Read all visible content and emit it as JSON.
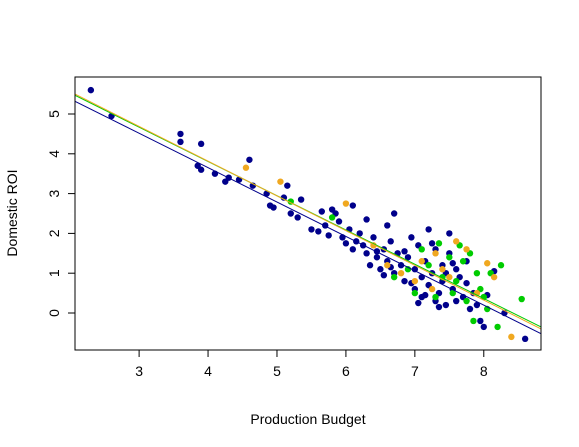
{
  "chart_data": {
    "type": "scatter",
    "title": "",
    "xlabel": "Production Budget",
    "ylabel": "Domestic ROI",
    "xlim": [
      2.07,
      8.83
    ],
    "ylim": [
      -0.93,
      5.93
    ],
    "xticks": [
      "3",
      "4",
      "5",
      "6",
      "7",
      "8"
    ],
    "yticks": [
      "0",
      "1",
      "2",
      "3",
      "4",
      "5"
    ],
    "grid": false,
    "legend": "none",
    "series": [
      {
        "color": "#00008b",
        "points": [
          [
            2.3,
            5.6
          ],
          [
            2.6,
            4.95
          ],
          [
            3.6,
            4.5
          ],
          [
            3.6,
            4.3
          ],
          [
            3.9,
            4.25
          ],
          [
            3.85,
            3.7
          ],
          [
            3.9,
            3.6
          ],
          [
            4.1,
            3.5
          ],
          [
            4.25,
            3.3
          ],
          [
            4.3,
            3.4
          ],
          [
            4.45,
            3.35
          ],
          [
            4.6,
            3.85
          ],
          [
            4.65,
            3.2
          ],
          [
            4.85,
            3.0
          ],
          [
            4.9,
            2.7
          ],
          [
            4.95,
            2.65
          ],
          [
            5.1,
            2.9
          ],
          [
            5.15,
            3.2
          ],
          [
            5.2,
            2.5
          ],
          [
            5.3,
            2.4
          ],
          [
            5.35,
            2.85
          ],
          [
            5.5,
            2.1
          ],
          [
            5.6,
            2.05
          ],
          [
            5.65,
            2.55
          ],
          [
            5.7,
            2.2
          ],
          [
            5.75,
            1.95
          ],
          [
            5.8,
            2.6
          ],
          [
            5.85,
            2.5
          ],
          [
            5.9,
            2.3
          ],
          [
            5.95,
            1.9
          ],
          [
            6.0,
            1.75
          ],
          [
            6.05,
            2.1
          ],
          [
            6.1,
            2.7
          ],
          [
            6.1,
            1.6
          ],
          [
            6.15,
            1.8
          ],
          [
            6.2,
            2.0
          ],
          [
            6.25,
            1.7
          ],
          [
            6.3,
            2.35
          ],
          [
            6.3,
            1.5
          ],
          [
            6.35,
            1.2
          ],
          [
            6.4,
            1.9
          ],
          [
            6.45,
            1.4
          ],
          [
            6.5,
            1.1
          ],
          [
            6.55,
            1.6
          ],
          [
            6.6,
            2.2
          ],
          [
            6.6,
            1.3
          ],
          [
            6.65,
            1.8
          ],
          [
            6.7,
            1.0
          ],
          [
            6.7,
            2.5
          ],
          [
            6.75,
            1.5
          ],
          [
            6.8,
            1.2
          ],
          [
            6.85,
            0.8
          ],
          [
            6.9,
            1.4
          ],
          [
            6.95,
            1.9
          ],
          [
            7.0,
            1.1
          ],
          [
            7.0,
            0.6
          ],
          [
            7.05,
            1.7
          ],
          [
            7.1,
            0.9
          ],
          [
            7.1,
            0.4
          ],
          [
            7.15,
            1.3
          ],
          [
            7.2,
            2.1
          ],
          [
            7.2,
            0.7
          ],
          [
            7.25,
            1.0
          ],
          [
            7.3,
            0.3
          ],
          [
            7.3,
            1.6
          ],
          [
            7.35,
            0.5
          ],
          [
            7.4,
            1.2
          ],
          [
            7.4,
            0.8
          ],
          [
            7.45,
            0.2
          ],
          [
            7.5,
            1.5
          ],
          [
            7.5,
            2.0
          ],
          [
            7.55,
            0.6
          ],
          [
            7.6,
            1.1
          ],
          [
            7.6,
            0.3
          ],
          [
            7.65,
            0.9
          ],
          [
            7.7,
            0.4
          ],
          [
            7.75,
            1.3
          ],
          [
            7.8,
            0.1
          ],
          [
            7.85,
            0.5
          ],
          [
            7.9,
            0.2
          ],
          [
            7.95,
            -0.2
          ],
          [
            8.0,
            -0.35
          ],
          [
            8.05,
            0.45
          ],
          [
            8.15,
            1.05
          ],
          [
            8.3,
            0.0
          ],
          [
            8.6,
            -0.65
          ],
          [
            6.95,
            0.75
          ],
          [
            7.15,
            0.45
          ],
          [
            7.25,
            1.75
          ],
          [
            6.85,
            1.55
          ],
          [
            7.45,
            1.0
          ],
          [
            7.05,
            0.25
          ],
          [
            6.55,
            0.95
          ],
          [
            7.35,
            0.15
          ],
          [
            7.75,
            0.75
          ],
          [
            6.45,
            1.55
          ],
          [
            6.65,
            1.15
          ],
          [
            7.55,
            1.25
          ]
        ]
      },
      {
        "color": "#00cc00",
        "points": [
          [
            5.2,
            2.8
          ],
          [
            5.8,
            2.4
          ],
          [
            6.7,
            0.9
          ],
          [
            6.9,
            1.1
          ],
          [
            7.0,
            0.5
          ],
          [
            7.1,
            1.6
          ],
          [
            7.2,
            1.2
          ],
          [
            7.3,
            0.4
          ],
          [
            7.4,
            0.9
          ],
          [
            7.5,
            1.4
          ],
          [
            7.6,
            0.8
          ],
          [
            7.65,
            1.7
          ],
          [
            7.7,
            1.3
          ],
          [
            7.75,
            0.3
          ],
          [
            7.8,
            1.5
          ],
          [
            7.85,
            -0.2
          ],
          [
            7.9,
            1.0
          ],
          [
            7.95,
            0.6
          ],
          [
            8.0,
            0.4
          ],
          [
            8.05,
            0.1
          ],
          [
            8.1,
            1.0
          ],
          [
            8.2,
            -0.35
          ],
          [
            8.25,
            1.2
          ],
          [
            8.55,
            0.35
          ],
          [
            7.55,
            0.5
          ],
          [
            7.35,
            1.75
          ]
        ]
      },
      {
        "color": "#f0a820",
        "points": [
          [
            4.55,
            3.65
          ],
          [
            5.05,
            3.3
          ],
          [
            6.0,
            2.75
          ],
          [
            6.4,
            1.7
          ],
          [
            6.6,
            1.2
          ],
          [
            6.8,
            1.0
          ],
          [
            7.0,
            0.8
          ],
          [
            7.1,
            1.3
          ],
          [
            7.25,
            0.6
          ],
          [
            7.4,
            1.1
          ],
          [
            7.5,
            0.9
          ],
          [
            7.6,
            1.8
          ],
          [
            7.75,
            1.6
          ],
          [
            7.9,
            0.5
          ],
          [
            8.05,
            1.25
          ],
          [
            8.15,
            0.9
          ],
          [
            8.4,
            -0.6
          ],
          [
            7.3,
            1.5
          ]
        ]
      }
    ],
    "lines": [
      {
        "color": "#00008b",
        "from": [
          2.07,
          5.32
        ],
        "to": [
          8.83,
          -0.52
        ]
      },
      {
        "color": "#00cc00",
        "from": [
          2.07,
          5.47
        ],
        "to": [
          8.83,
          -0.35
        ]
      },
      {
        "color": "#f0a820",
        "from": [
          2.07,
          5.5
        ],
        "to": [
          8.83,
          -0.4
        ]
      }
    ]
  }
}
